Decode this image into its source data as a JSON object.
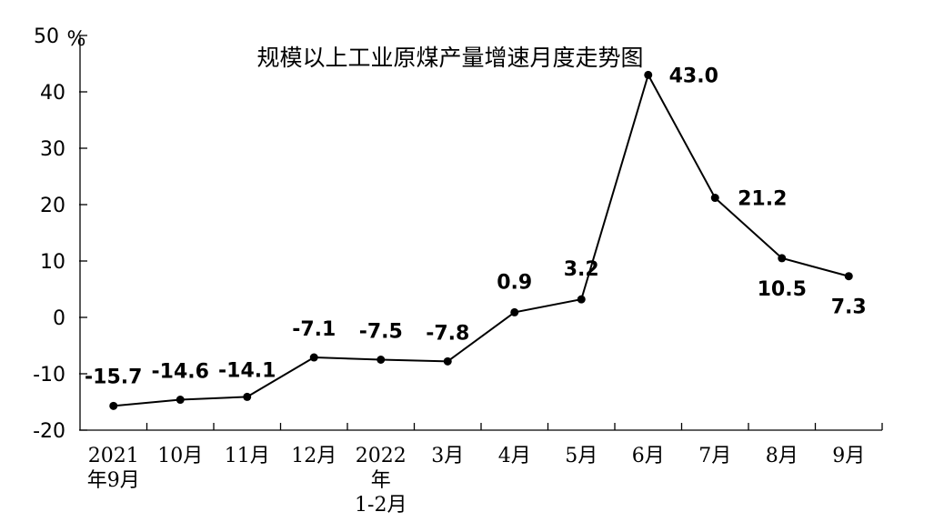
{
  "chart_data": {
    "type": "line",
    "title": "规模以上工业原煤产量增速月度走势图",
    "unit": "%",
    "ylim": [
      -20,
      50
    ],
    "yticks": [
      "-20",
      "-10",
      "0",
      "10",
      "20",
      "30",
      "40",
      "50"
    ],
    "grid": false,
    "categories": [
      "2021年9月",
      "10月",
      "11月",
      "12月",
      "2022年1-2月",
      "3月",
      "4月",
      "5月",
      "6月",
      "7月",
      "8月",
      "9月"
    ],
    "category_tick_lines": [
      [
        "2021",
        "年9月"
      ],
      [
        "10月"
      ],
      [
        "11月"
      ],
      [
        "12月"
      ],
      [
        "2022",
        "年",
        "1-2月"
      ],
      [
        "3月"
      ],
      [
        "4月"
      ],
      [
        "5月"
      ],
      [
        "6月"
      ],
      [
        "7月"
      ],
      [
        "8月"
      ],
      [
        "9月"
      ]
    ],
    "series": [
      {
        "values": [
          -15.7,
          -14.6,
          -14.1,
          -7.1,
          -7.5,
          -7.8,
          0.9,
          3.2,
          43.0,
          21.2,
          10.5,
          7.3
        ],
        "labels": [
          "-15.7",
          "-14.6",
          "-14.1",
          "-7.1",
          "-7.5",
          "-7.8",
          "0.9",
          "3.2",
          "43.0",
          "21.2",
          "10.5",
          "7.3"
        ],
        "color": "#000000"
      }
    ]
  }
}
